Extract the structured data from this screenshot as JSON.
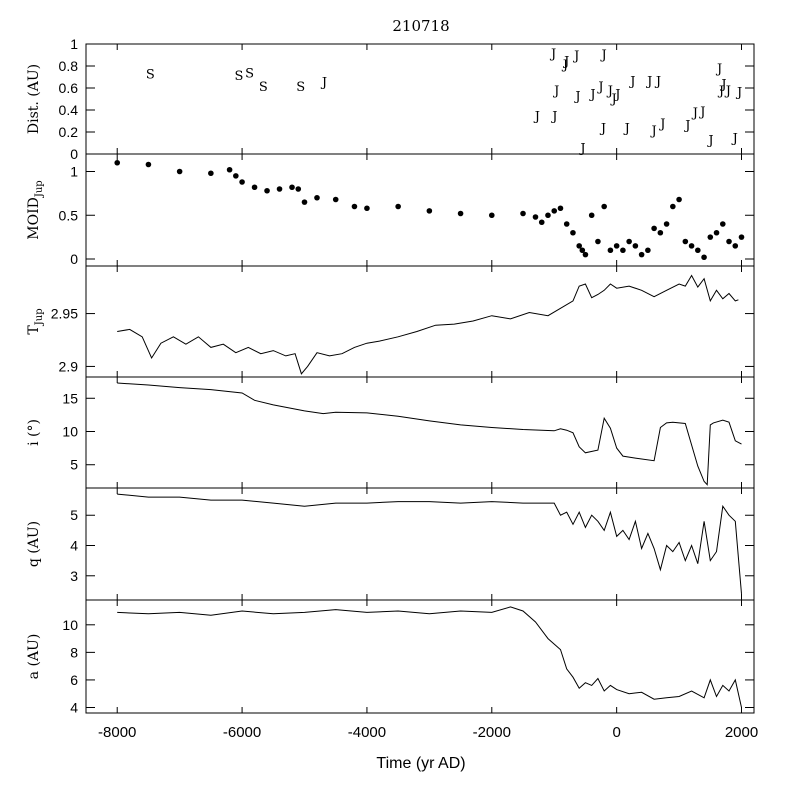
{
  "chart_data": {
    "type": "line",
    "title": "210718",
    "xlabel": "Time (yr AD)",
    "xlim": [
      -8500,
      2200
    ],
    "x_ticks": [
      -8000,
      -6000,
      -4000,
      -2000,
      0,
      2000
    ],
    "x_tick_labels": [
      "-8000",
      "-6000",
      "-4000",
      "-2000",
      "0",
      "2000"
    ],
    "panels": [
      {
        "id": "dist",
        "ylabel": "Dist. (AU)",
        "ylim": [
          0,
          1
        ],
        "y_ticks": [
          0,
          0.2,
          0.4,
          0.6,
          0.8,
          1
        ],
        "y_tick_labels": [
          "0",
          "0.2",
          "0.4",
          "0.6",
          "0.8",
          "1"
        ],
        "series_type": "letters",
        "encounters": [
          {
            "x": -7470,
            "y": 0.73,
            "label": "S"
          },
          {
            "x": -6050,
            "y": 0.72,
            "label": "S"
          },
          {
            "x": -5880,
            "y": 0.74,
            "label": "S"
          },
          {
            "x": -5660,
            "y": 0.62,
            "label": "S"
          },
          {
            "x": -5060,
            "y": 0.62,
            "label": "S"
          },
          {
            "x": -4680,
            "y": 0.66,
            "label": "J"
          },
          {
            "x": -1270,
            "y": 0.35,
            "label": "J"
          },
          {
            "x": -990,
            "y": 0.35,
            "label": "J"
          },
          {
            "x": -960,
            "y": 0.58,
            "label": "J"
          },
          {
            "x": -1010,
            "y": 0.92,
            "label": "J"
          },
          {
            "x": -820,
            "y": 0.82,
            "label": "J"
          },
          {
            "x": -800,
            "y": 0.85,
            "label": "J"
          },
          {
            "x": -640,
            "y": 0.9,
            "label": "J"
          },
          {
            "x": -620,
            "y": 0.53,
            "label": "J"
          },
          {
            "x": -540,
            "y": 0.06,
            "label": "J"
          },
          {
            "x": -380,
            "y": 0.55,
            "label": "J"
          },
          {
            "x": -250,
            "y": 0.62,
            "label": "J"
          },
          {
            "x": -210,
            "y": 0.24,
            "label": "J"
          },
          {
            "x": -200,
            "y": 0.91,
            "label": "J"
          },
          {
            "x": -100,
            "y": 0.58,
            "label": "J"
          },
          {
            "x": -40,
            "y": 0.51,
            "label": "J"
          },
          {
            "x": 20,
            "y": 0.55,
            "label": "J"
          },
          {
            "x": 170,
            "y": 0.24,
            "label": "J"
          },
          {
            "x": 260,
            "y": 0.67,
            "label": "J"
          },
          {
            "x": 530,
            "y": 0.67,
            "label": "J"
          },
          {
            "x": 600,
            "y": 0.22,
            "label": "J"
          },
          {
            "x": 670,
            "y": 0.67,
            "label": "J"
          },
          {
            "x": 740,
            "y": 0.28,
            "label": "J"
          },
          {
            "x": 1140,
            "y": 0.27,
            "label": "J"
          },
          {
            "x": 1260,
            "y": 0.38,
            "label": "J"
          },
          {
            "x": 1380,
            "y": 0.39,
            "label": "J"
          },
          {
            "x": 1510,
            "y": 0.13,
            "label": "J"
          },
          {
            "x": 1650,
            "y": 0.78,
            "label": "J"
          },
          {
            "x": 1680,
            "y": 0.58,
            "label": "J"
          },
          {
            "x": 1720,
            "y": 0.64,
            "label": "J"
          },
          {
            "x": 1790,
            "y": 0.58,
            "label": "J"
          },
          {
            "x": 1900,
            "y": 0.15,
            "label": "J"
          },
          {
            "x": 1970,
            "y": 0.57,
            "label": "J"
          }
        ]
      },
      {
        "id": "moid",
        "ylabel": "MOID",
        "ylabel_sub": "Jup",
        "ylim": [
          -0.08,
          1.2
        ],
        "y_ticks": [
          0,
          0.5,
          1
        ],
        "y_tick_labels": [
          "0",
          "0.5",
          "1"
        ],
        "series_type": "dots",
        "x": [
          -8000,
          -7500,
          -7000,
          -6500,
          -6200,
          -6100,
          -6000,
          -5800,
          -5600,
          -5400,
          -5200,
          -5100,
          -5000,
          -4800,
          -4500,
          -4200,
          -4000,
          -3500,
          -3000,
          -2500,
          -2000,
          -1500,
          -1300,
          -1200,
          -1100,
          -1000,
          -900,
          -800,
          -700,
          -600,
          -550,
          -500,
          -400,
          -300,
          -200,
          -100,
          0,
          100,
          200,
          300,
          400,
          500,
          600,
          700,
          800,
          900,
          1000,
          1100,
          1200,
          1300,
          1400,
          1500,
          1600,
          1700,
          1800,
          1900,
          2000
        ],
        "values": [
          1.1,
          1.08,
          1.0,
          0.98,
          1.02,
          0.95,
          0.88,
          0.82,
          0.78,
          0.8,
          0.82,
          0.8,
          0.65,
          0.7,
          0.68,
          0.6,
          0.58,
          0.6,
          0.55,
          0.52,
          0.5,
          0.52,
          0.48,
          0.42,
          0.5,
          0.55,
          0.58,
          0.4,
          0.3,
          0.15,
          0.1,
          0.05,
          0.5,
          0.2,
          0.6,
          0.1,
          0.15,
          0.1,
          0.2,
          0.15,
          0.05,
          0.1,
          0.35,
          0.3,
          0.4,
          0.6,
          0.68,
          0.2,
          0.15,
          0.1,
          0.02,
          0.25,
          0.3,
          0.4,
          0.2,
          0.15,
          0.25
        ]
      },
      {
        "id": "tjup",
        "ylabel": "T",
        "ylabel_sub": "Jup",
        "ylim": [
          2.89,
          2.995
        ],
        "y_ticks": [
          2.9,
          2.95
        ],
        "y_tick_labels": [
          "2.9",
          "2.95"
        ],
        "series_type": "line",
        "x": [
          -8000,
          -7800,
          -7600,
          -7450,
          -7300,
          -7100,
          -6900,
          -6700,
          -6500,
          -6300,
          -6100,
          -5900,
          -5700,
          -5500,
          -5300,
          -5150,
          -5050,
          -4950,
          -4800,
          -4600,
          -4400,
          -4200,
          -4000,
          -3800,
          -3500,
          -3200,
          -2900,
          -2600,
          -2300,
          -2000,
          -1700,
          -1400,
          -1100,
          -900,
          -700,
          -600,
          -500,
          -400,
          -300,
          -200,
          -100,
          0,
          200,
          400,
          600,
          800,
          1000,
          1100,
          1200,
          1300,
          1400,
          1500,
          1600,
          1700,
          1800,
          1900,
          1950
        ],
        "values": [
          2.933,
          2.935,
          2.928,
          2.908,
          2.922,
          2.928,
          2.921,
          2.928,
          2.918,
          2.921,
          2.913,
          2.918,
          2.912,
          2.915,
          2.91,
          2.912,
          2.893,
          2.9,
          2.913,
          2.91,
          2.912,
          2.918,
          2.922,
          2.924,
          2.928,
          2.933,
          2.939,
          2.94,
          2.943,
          2.948,
          2.945,
          2.951,
          2.948,
          2.955,
          2.962,
          2.976,
          2.978,
          2.965,
          2.968,
          2.972,
          2.978,
          2.974,
          2.976,
          2.972,
          2.966,
          2.972,
          2.978,
          2.976,
          2.986,
          2.975,
          2.983,
          2.962,
          2.972,
          2.964,
          2.969,
          2.962,
          2.963
        ]
      },
      {
        "id": "incl",
        "ylabel": "i (°)",
        "ylim": [
          1.5,
          18.2
        ],
        "y_ticks": [
          5,
          10,
          15
        ],
        "y_tick_labels": [
          "5",
          "10",
          "15"
        ],
        "series_type": "line",
        "x": [
          -8000,
          -7500,
          -7000,
          -6500,
          -6000,
          -5800,
          -5500,
          -5000,
          -4700,
          -4500,
          -4000,
          -3500,
          -3000,
          -2500,
          -2000,
          -1500,
          -1000,
          -900,
          -800,
          -700,
          -600,
          -500,
          -300,
          -200,
          -100,
          0,
          100,
          300,
          600,
          700,
          800,
          900,
          1100,
          1300,
          1400,
          1450,
          1500,
          1550,
          1700,
          1800,
          1900,
          2000
        ],
        "values": [
          17.3,
          17.0,
          16.6,
          16.3,
          15.8,
          14.7,
          14.0,
          13.1,
          12.7,
          12.9,
          12.8,
          12.3,
          11.6,
          11.0,
          10.6,
          10.3,
          10.1,
          10.4,
          10.2,
          9.8,
          7.7,
          6.8,
          7.2,
          12.0,
          10.5,
          7.5,
          6.3,
          6.0,
          5.6,
          10.6,
          11.3,
          11.4,
          11.2,
          4.8,
          2.5,
          2.0,
          11.0,
          11.3,
          11.7,
          11.4,
          8.6,
          8.1
        ]
      },
      {
        "id": "q",
        "ylabel": "q (AU)",
        "ylim": [
          2.2,
          5.9
        ],
        "y_ticks": [
          3,
          4,
          5
        ],
        "y_tick_labels": [
          "3",
          "4",
          "5"
        ],
        "series_type": "line",
        "x": [
          -8000,
          -7500,
          -7000,
          -6500,
          -6000,
          -5500,
          -5000,
          -4500,
          -4000,
          -3500,
          -3000,
          -2500,
          -2000,
          -1500,
          -1000,
          -900,
          -800,
          -700,
          -600,
          -500,
          -400,
          -300,
          -200,
          -100,
          0,
          100,
          200,
          300,
          400,
          500,
          600,
          700,
          800,
          900,
          1000,
          1100,
          1200,
          1300,
          1400,
          1500,
          1600,
          1700,
          1800,
          1900,
          2000
        ],
        "values": [
          5.7,
          5.6,
          5.6,
          5.5,
          5.5,
          5.4,
          5.3,
          5.4,
          5.4,
          5.45,
          5.45,
          5.4,
          5.45,
          5.4,
          5.4,
          5.0,
          5.1,
          4.7,
          5.1,
          4.6,
          5.0,
          4.8,
          4.5,
          5.1,
          4.3,
          4.5,
          4.2,
          4.8,
          3.9,
          4.4,
          3.9,
          3.2,
          4.0,
          3.8,
          4.1,
          3.5,
          4.0,
          3.4,
          4.8,
          3.5,
          3.8,
          5.3,
          5.0,
          4.8,
          2.4
        ]
      },
      {
        "id": "a",
        "ylabel": "a (AU)",
        "ylim": [
          3.6,
          11.8
        ],
        "y_ticks": [
          4,
          6,
          8,
          10
        ],
        "y_tick_labels": [
          "4",
          "6",
          "8",
          "10"
        ],
        "series_type": "line",
        "x": [
          -8000,
          -7500,
          -7000,
          -6500,
          -6000,
          -5500,
          -5000,
          -4500,
          -4000,
          -3500,
          -3000,
          -2500,
          -2000,
          -1700,
          -1500,
          -1300,
          -1100,
          -900,
          -800,
          -700,
          -600,
          -500,
          -400,
          -300,
          -200,
          -100,
          0,
          200,
          400,
          600,
          800,
          1000,
          1200,
          1400,
          1500,
          1600,
          1700,
          1800,
          1900,
          2000
        ],
        "values": [
          10.9,
          10.8,
          10.9,
          10.7,
          11.0,
          10.8,
          10.9,
          11.1,
          10.9,
          11.0,
          10.8,
          11.0,
          10.9,
          11.3,
          11.0,
          10.2,
          9.0,
          8.2,
          6.8,
          6.2,
          5.4,
          5.8,
          5.6,
          6.1,
          5.2,
          5.6,
          5.3,
          5.0,
          5.1,
          4.6,
          4.7,
          4.8,
          5.2,
          4.7,
          6.0,
          4.8,
          5.6,
          5.2,
          6.0,
          4.0
        ]
      }
    ]
  }
}
